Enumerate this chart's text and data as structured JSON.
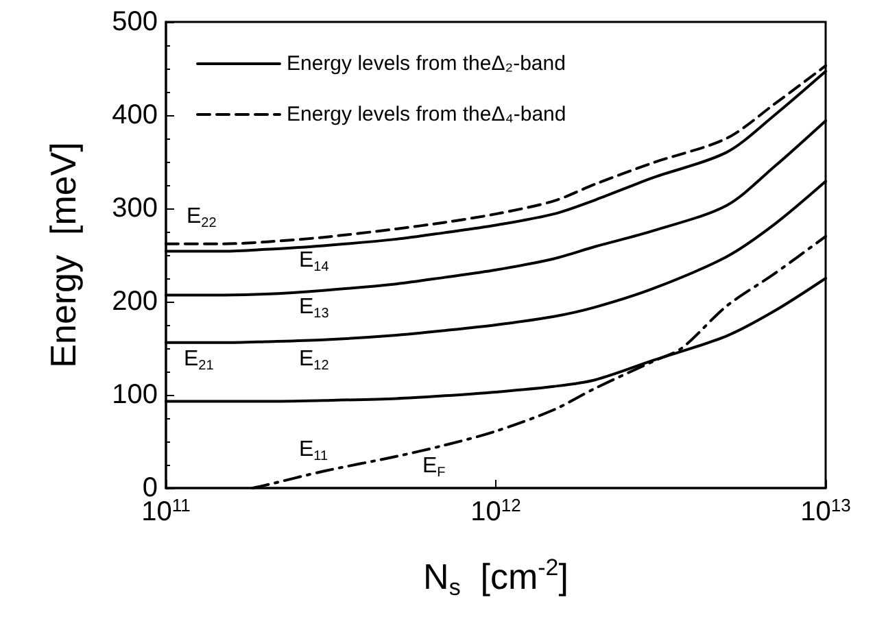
{
  "chart_data": {
    "type": "line",
    "xlabel": "N$_{s}$  [cm$^{-2}$]",
    "ylabel": "Energy  [meV]",
    "log": "x",
    "xlim": [
      100000000000.0,
      10000000000000.0
    ],
    "xticks": [
      {
        "value": 100000000000.0,
        "label": "10$^{11}$"
      },
      {
        "value": 1000000000000.0,
        "label": "10$^{12}$"
      },
      {
        "value": 10000000000000.0,
        "label": "10$^{13}$"
      }
    ],
    "ylim": [
      0,
      500
    ],
    "yticks": [
      0,
      100,
      200,
      300,
      400,
      500
    ],
    "grid": false,
    "legend": "top left",
    "marker": "none",
    "x": [
      100000000000.0,
      150000000000.0,
      200000000000.0,
      300000000000.0,
      500000000000.0,
      700000000000.0,
      1000000000000.0,
      1500000000000.0,
      2000000000000.0,
      3000000000000.0,
      5000000000000.0,
      7000000000000.0,
      10000000000000.0
    ],
    "series": [
      {
        "name": "Energy levels from theΔ₂-band",
        "color": "#000000",
        "line_style": "solid",
        "values": [
          93,
          93,
          93,
          94,
          96,
          99,
          103,
          109,
          116,
          137,
          163,
          190,
          225
        ]
      },
      {
        "color": "#000000",
        "line_style": "solid",
        "values": [
          156,
          156,
          157,
          159,
          164,
          169,
          175,
          184,
          194,
          214,
          248,
          283,
          329
        ]
      },
      {
        "color": "#000000",
        "line_style": "solid",
        "values": [
          207,
          207,
          208,
          212,
          219,
          226,
          234,
          246,
          259,
          276,
          303,
          345,
          394
        ]
      },
      {
        "color": "#000000",
        "line_style": "solid",
        "values": [
          254,
          254,
          256,
          260,
          267,
          274,
          282,
          294,
          309,
          333,
          360,
          400,
          447
        ]
      },
      {
        "name": "Energy levels from theΔ₄-band",
        "color": "#000000",
        "line_style": "dashed",
        "values": [
          262,
          262,
          264,
          269,
          278,
          285,
          294,
          308,
          326,
          349,
          375,
          412,
          453
        ]
      },
      {
        "color": "#000000",
        "line_style": "dashdot",
        "x": [
          183000000000.0,
          200000000000.0,
          300000000000.0,
          500000000000.0,
          700000000000.0,
          1000000000000.0,
          1500000000000.0,
          2000000000000.0,
          3000000000000.0,
          3660000000000.0,
          5000000000000.0,
          7000000000000.0,
          10000000000000.0
        ],
        "values": [
          0,
          3,
          18,
          34,
          46,
          61,
          84,
          107,
          136,
          150,
          195,
          230,
          270
        ]
      }
    ],
    "annotations": [
      "E$_{22}$",
      "E$_{14}$",
      "E$_{13}$",
      "E$_{12}$",
      "E$_{21}$",
      "E$_{11}$",
      "E$_{F}$"
    ]
  }
}
